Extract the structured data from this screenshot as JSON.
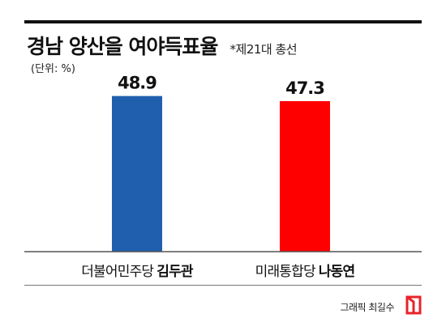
{
  "header": {
    "title": "경남 양산을 여야득표율",
    "subnote": "*제21대 총선",
    "unit": "(단위: %)"
  },
  "chart_data": {
    "type": "bar",
    "categories": [
      "더불어민주당 김두관",
      "미래통합당 나동연"
    ],
    "category_parts": [
      {
        "party": "더불어민주당",
        "candidate": "김두관"
      },
      {
        "party": "미래통합당",
        "candidate": "나동연"
      }
    ],
    "values": [
      48.9,
      47.3
    ],
    "value_labels": [
      "48.9",
      "47.3"
    ],
    "colors": [
      "#1f5fae",
      "#ff0000"
    ],
    "title": "경남 양산을 여야득표율",
    "xlabel": "",
    "ylabel": "",
    "ylim": [
      0,
      60
    ],
    "grid": false,
    "legend": "none"
  },
  "footer": {
    "credit": "그래픽 최길수",
    "logo_color": "#e8232a"
  }
}
